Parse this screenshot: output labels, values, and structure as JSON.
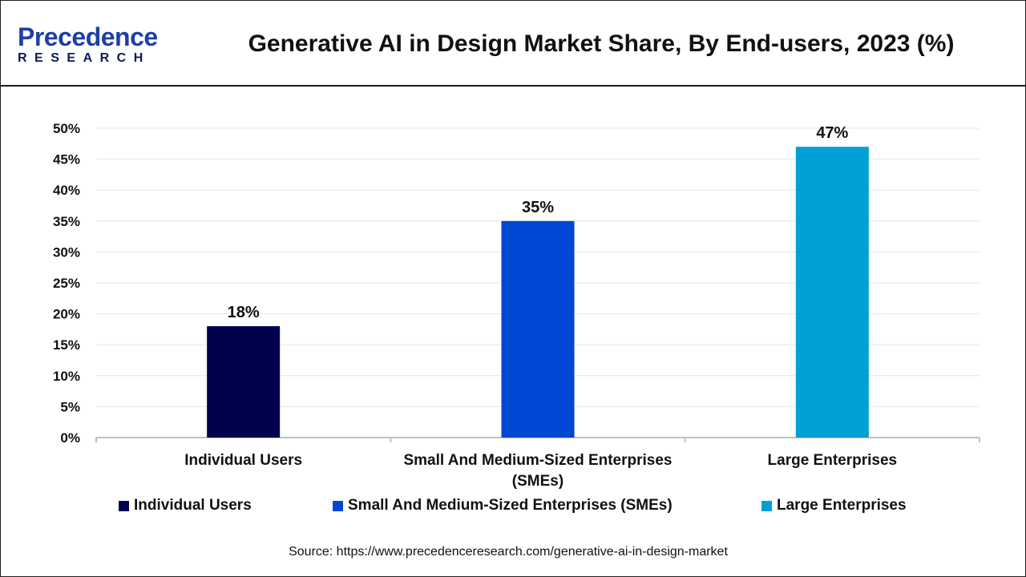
{
  "header": {
    "logo_top": "Precedence",
    "logo_bottom": "RESEARCH",
    "title": "Generative AI in Design Market Share, By End-users, 2023 (%)"
  },
  "chart_data": {
    "type": "bar",
    "title": "Generative AI in Design Market Share, By End-users, 2023 (%)",
    "categories": [
      "Individual Users",
      "Small And Medium-Sized Enterprises (SMEs)",
      "Large Enterprises"
    ],
    "category_labels": [
      [
        "Individual Users"
      ],
      [
        "Small And Medium-Sized Enterprises",
        "(SMEs)"
      ],
      [
        "Large Enterprises"
      ]
    ],
    "values": [
      18,
      35,
      47
    ],
    "data_labels": [
      "18%",
      "35%",
      "47%"
    ],
    "colors": [
      "#00004f",
      "#0047d4",
      "#009fd4"
    ],
    "ylim": [
      0,
      50
    ],
    "yticks": [
      "0%",
      "5%",
      "10%",
      "15%",
      "20%",
      "25%",
      "30%",
      "35%",
      "40%",
      "45%",
      "50%"
    ],
    "grid": true,
    "legend_position": "bottom"
  },
  "legend": [
    "Individual Users",
    "Small And Medium-Sized Enterprises (SMEs)",
    "Large Enterprises"
  ],
  "source": "Source: https://www.precedenceresearch.com/generative-ai-in-design-market"
}
